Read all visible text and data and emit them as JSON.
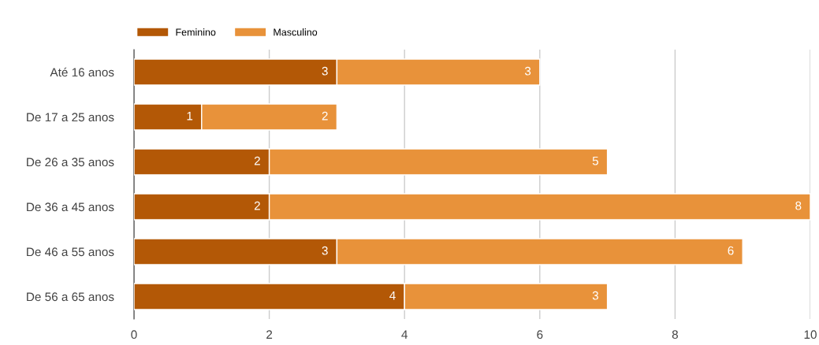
{
  "chart_data": {
    "type": "bar",
    "orientation": "horizontal",
    "stacked": true,
    "categories": [
      "Até 16 anos",
      "De 17 a 25 anos",
      "De 26 a 35 anos",
      "De 36 a 45 anos",
      "De 46 a 55 anos",
      "De 56 a 65 anos"
    ],
    "series": [
      {
        "name": "Feminino",
        "color": "#b35806",
        "values": [
          3,
          1,
          2,
          2,
          3,
          4
        ]
      },
      {
        "name": "Masculino",
        "color": "#e8923a",
        "values": [
          3,
          2,
          5,
          8,
          6,
          3
        ]
      }
    ],
    "xlim": [
      0,
      10
    ],
    "xticks": [
      0,
      2,
      4,
      6,
      8,
      10
    ],
    "grid": "x",
    "legend": "top left",
    "data_labels": true
  }
}
